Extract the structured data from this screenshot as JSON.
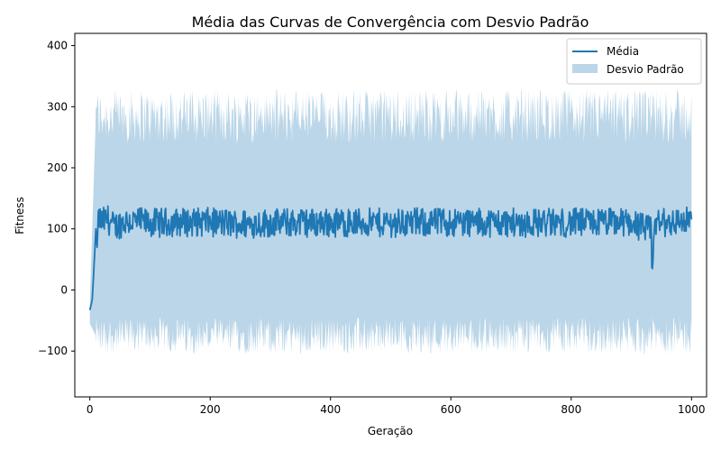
{
  "chart_data": {
    "type": "area",
    "title": "Média das Curvas de Convergência com Desvio Padrão",
    "xlabel": "Geração",
    "ylabel": "Fitness",
    "xlim": [
      -25,
      1025
    ],
    "ylim": [
      -175,
      420
    ],
    "x_ticks": [
      0,
      200,
      400,
      600,
      800,
      1000
    ],
    "y_ticks": [
      -100,
      0,
      100,
      200,
      300,
      400
    ],
    "x_tick_labels": [
      "0",
      "200",
      "400",
      "600",
      "800",
      "1000"
    ],
    "y_tick_labels": [
      "−100",
      "0",
      "100",
      "200",
      "300",
      "400"
    ],
    "grid": false,
    "legend_position": "upper-right",
    "series": [
      {
        "name": "Média",
        "kind": "line",
        "color": "#1f77b4",
        "x_range": [
          0,
          1000
        ],
        "points": [
          [
            0,
            -33
          ],
          [
            2,
            -25
          ],
          [
            4,
            -15
          ],
          [
            6,
            20
          ],
          [
            8,
            60
          ],
          [
            10,
            100
          ],
          [
            12,
            70
          ],
          [
            15,
            145
          ],
          [
            20,
            115
          ],
          [
            30,
            140
          ],
          [
            40,
            75
          ],
          [
            60,
            125
          ],
          [
            100,
            108
          ],
          [
            150,
            115
          ],
          [
            200,
            115
          ],
          [
            250,
            100
          ],
          [
            300,
            110
          ],
          [
            400,
            112
          ],
          [
            500,
            110
          ],
          [
            600,
            115
          ],
          [
            700,
            110
          ],
          [
            800,
            110
          ],
          [
            900,
            115
          ],
          [
            935,
            35
          ],
          [
            940,
            105
          ],
          [
            975,
            120
          ],
          [
            1000,
            125
          ]
        ],
        "steady_mean": 110,
        "steady_amplitude": 30
      },
      {
        "name": "Desvio Padrão",
        "kind": "band",
        "color": "#1f77b4",
        "opacity": 0.3,
        "x_range": [
          0,
          1000
        ],
        "upper_start": -20,
        "lower_start": -55,
        "upper_mean": 285,
        "lower_mean": -75,
        "upper_peak": 385,
        "lower_trough": -145
      }
    ]
  }
}
